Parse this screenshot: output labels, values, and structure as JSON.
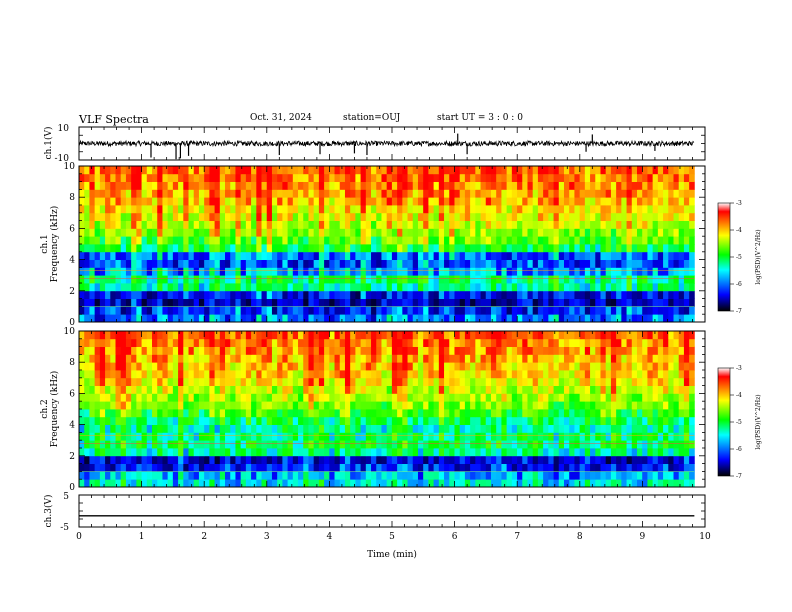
{
  "header": {
    "title": "VLF Spectra",
    "date": "Oct. 31, 2024",
    "station": "station=OUJ",
    "start_ut": "start  UT  =   3  :  0   :  0"
  },
  "panels": {
    "ch1": {
      "ylabel": "ch.1(V)",
      "yticks": [
        "10",
        "-10"
      ]
    },
    "spec1": {
      "ylabel_line1": "ch.1",
      "ylabel_line2": "Frequency (kHz)"
    },
    "spec2": {
      "ylabel_line1": "ch.2",
      "ylabel_line2": "Frequency (kHz)"
    },
    "ch3": {
      "ylabel": "ch.3(V)",
      "yticks": [
        "5",
        "-5"
      ]
    }
  },
  "colorbar": {
    "label": "log(PSD)(V^2/Hz)",
    "ticks": [
      "-3",
      "-4",
      "-5",
      "-6",
      "-7"
    ],
    "colors": [
      "#ff0000",
      "#ffff00",
      "#00ff00",
      "#00ffff",
      "#0000ff",
      "#000000"
    ]
  },
  "chart_data": [
    {
      "type": "line",
      "title": "VLF Spectra",
      "ylabel": "ch.1(V)",
      "xlim": [
        0,
        10
      ],
      "ylim": [
        -10,
        10
      ],
      "x_ticks": [
        "0",
        "1",
        "2",
        "3",
        "4",
        "5",
        "6",
        "7",
        "8",
        "9",
        "10"
      ],
      "y_ticks": [
        "10",
        "-10"
      ],
      "data_extent_x": [
        0,
        9.83
      ],
      "baseline": 0,
      "noise_amplitude": 1.5,
      "spikes": [
        {
          "x": 1.15,
          "y": -8.5
        },
        {
          "x": 1.55,
          "y": -9.5
        },
        {
          "x": 1.62,
          "y": -9.0
        },
        {
          "x": 1.75,
          "y": -7.5
        },
        {
          "x": 3.2,
          "y": -7.0
        },
        {
          "x": 3.85,
          "y": -6.5
        },
        {
          "x": 4.4,
          "y": -6.0
        },
        {
          "x": 4.6,
          "y": -7.0
        },
        {
          "x": 6.05,
          "y": 6.0
        },
        {
          "x": 6.2,
          "y": -6.5
        },
        {
          "x": 8.1,
          "y": -5.0
        },
        {
          "x": 8.2,
          "y": 5.5
        },
        {
          "x": 9.2,
          "y": -4.5
        }
      ]
    },
    {
      "type": "heatmap",
      "ylabel": "ch.1 Frequency (kHz)",
      "xlim": [
        0,
        10
      ],
      "ylim": [
        0,
        10
      ],
      "x_ticks": [
        "0",
        "1",
        "2",
        "3",
        "4",
        "5",
        "6",
        "7",
        "8",
        "9",
        "10"
      ],
      "y_ticks": [
        "0",
        "2",
        "4",
        "6",
        "8",
        "10"
      ],
      "zlabel": "log(PSD)(V^2/Hz)",
      "zlim": [
        -7,
        -3
      ],
      "freq_profile": [
        {
          "f": 0.25,
          "z": -6.0
        },
        {
          "f": 0.75,
          "z": -6.3
        },
        {
          "f": 1.25,
          "z": -6.6
        },
        {
          "f": 1.75,
          "z": -6.4
        },
        {
          "f": 2.25,
          "z": -5.4
        },
        {
          "f": 2.75,
          "z": -5.3
        },
        {
          "f": 3.25,
          "z": -5.9
        },
        {
          "f": 3.75,
          "z": -6.2
        },
        {
          "f": 4.25,
          "z": -6.1
        },
        {
          "f": 4.75,
          "z": -5.2
        },
        {
          "f": 5.25,
          "z": -4.8
        },
        {
          "f": 5.75,
          "z": -4.5
        },
        {
          "f": 6.25,
          "z": -4.3
        },
        {
          "f": 6.75,
          "z": -4.1
        },
        {
          "f": 7.25,
          "z": -4.0
        },
        {
          "f": 7.75,
          "z": -3.8
        },
        {
          "f": 8.25,
          "z": -3.7
        },
        {
          "f": 8.75,
          "z": -3.6
        },
        {
          "f": 9.25,
          "z": -3.5
        },
        {
          "f": 9.75,
          "z": -3.4
        }
      ]
    },
    {
      "type": "heatmap",
      "ylabel": "ch.2 Frequency (kHz)",
      "xlim": [
        0,
        10
      ],
      "ylim": [
        0,
        10
      ],
      "x_ticks": [
        "0",
        "1",
        "2",
        "3",
        "4",
        "5",
        "6",
        "7",
        "8",
        "9",
        "10"
      ],
      "y_ticks": [
        "0",
        "2",
        "4",
        "6",
        "8",
        "10"
      ],
      "zlabel": "log(PSD)(V^2/Hz)",
      "zlim": [
        -7,
        -3
      ],
      "freq_profile": [
        {
          "f": 0.25,
          "z": -5.6
        },
        {
          "f": 0.75,
          "z": -5.8
        },
        {
          "f": 1.25,
          "z": -6.3
        },
        {
          "f": 1.75,
          "z": -6.5
        },
        {
          "f": 2.25,
          "z": -5.4
        },
        {
          "f": 2.75,
          "z": -5.2
        },
        {
          "f": 3.25,
          "z": -5.3
        },
        {
          "f": 3.75,
          "z": -5.4
        },
        {
          "f": 4.25,
          "z": -5.2
        },
        {
          "f": 4.75,
          "z": -4.9
        },
        {
          "f": 5.25,
          "z": -4.6
        },
        {
          "f": 5.75,
          "z": -4.4
        },
        {
          "f": 6.25,
          "z": -4.2
        },
        {
          "f": 6.75,
          "z": -4.0
        },
        {
          "f": 7.25,
          "z": -3.9
        },
        {
          "f": 7.75,
          "z": -3.8
        },
        {
          "f": 8.25,
          "z": -3.7
        },
        {
          "f": 8.75,
          "z": -3.6
        },
        {
          "f": 9.25,
          "z": -3.5
        },
        {
          "f": 9.75,
          "z": -3.4
        }
      ]
    },
    {
      "type": "line",
      "ylabel": "ch.3(V)",
      "xlabel": "Time (min)",
      "xlim": [
        0,
        10
      ],
      "ylim": [
        -5,
        5
      ],
      "x_ticks": [
        "0",
        "1",
        "2",
        "3",
        "4",
        "5",
        "6",
        "7",
        "8",
        "9",
        "10"
      ],
      "y_ticks": [
        "5",
        "-5"
      ],
      "data_extent_x": [
        0,
        9.83
      ],
      "baseline": -1.5
    }
  ]
}
